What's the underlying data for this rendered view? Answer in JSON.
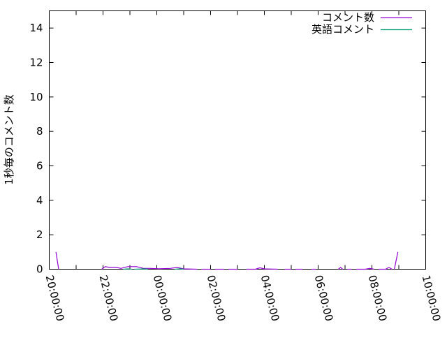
{
  "chart_data": {
    "type": "line",
    "title": "",
    "xlabel": "",
    "ylabel": "1秒毎のコメント数",
    "xlim": [
      "20:00:00",
      "10:00:00"
    ],
    "ylim": [
      0,
      15
    ],
    "x_ticks": [
      "20:00:00",
      "22:00:00",
      "00:00:00",
      "02:00:00",
      "04:00:00",
      "06:00:00",
      "08:00:00",
      "10:00:00"
    ],
    "y_ticks": [
      "0",
      "2",
      "4",
      "6",
      "8",
      "10",
      "12",
      "14"
    ],
    "grid": false,
    "legend": "top-right",
    "series": [
      {
        "name": "コメント数",
        "color": "#9400d3",
        "points": [
          [
            "20:15",
            1.0
          ],
          [
            "20:21",
            0
          ],
          null,
          [
            "21:57",
            0
          ],
          [
            "22:05",
            0.15
          ],
          [
            "22:15",
            0.1
          ],
          [
            "22:30",
            0.1
          ],
          [
            "22:40",
            0.05
          ],
          [
            "22:55",
            0.15
          ],
          [
            "23:15",
            0.15
          ],
          [
            "23:30",
            0.05
          ],
          [
            "23:45",
            0.05
          ],
          [
            "00:05",
            0.03
          ],
          [
            "00:30",
            0.05
          ],
          [
            "00:45",
            0.1
          ],
          [
            "01:00",
            0.02
          ],
          [
            "01:30",
            0
          ],
          null,
          [
            "01:40",
            0
          ],
          [
            "02:00",
            0
          ],
          null,
          [
            "02:10",
            0
          ],
          [
            "02:30",
            0
          ],
          null,
          [
            "02:40",
            0
          ],
          [
            "03:00",
            0
          ],
          null,
          [
            "03:20",
            0
          ],
          [
            "03:40",
            0
          ],
          [
            "03:50",
            0.08
          ],
          [
            "04:00",
            0.02
          ],
          [
            "04:30",
            0
          ],
          null,
          [
            "04:45",
            0
          ],
          [
            "05:00",
            0
          ],
          null,
          [
            "05:10",
            0
          ],
          [
            "05:25",
            0
          ],
          null,
          [
            "05:45",
            0
          ],
          [
            "05:55",
            0
          ],
          null,
          [
            "06:45",
            0
          ],
          [
            "06:50",
            0.1
          ],
          [
            "06:55",
            0
          ],
          null,
          [
            "07:05",
            0
          ],
          [
            "07:15",
            0
          ],
          null,
          [
            "07:25",
            0
          ],
          [
            "07:45",
            0
          ],
          [
            "07:55",
            0.05
          ],
          [
            "08:05",
            0
          ],
          null,
          [
            "08:15",
            0
          ],
          [
            "08:30",
            0
          ],
          [
            "08:38",
            0.1
          ],
          [
            "08:45",
            0
          ],
          null,
          [
            "08:50",
            0
          ],
          [
            "08:58",
            1.0
          ]
        ]
      },
      {
        "name": "英語コメント",
        "color": "#009e73",
        "points": [
          [
            "22:45",
            0
          ],
          [
            "22:55",
            0.02
          ],
          [
            "23:05",
            0
          ],
          null,
          [
            "23:10",
            0
          ],
          [
            "23:30",
            0.02
          ],
          [
            "23:40",
            0
          ],
          null,
          [
            "00:40",
            0
          ],
          [
            "00:50",
            0.02
          ],
          [
            "01:00",
            0
          ]
        ]
      }
    ]
  }
}
